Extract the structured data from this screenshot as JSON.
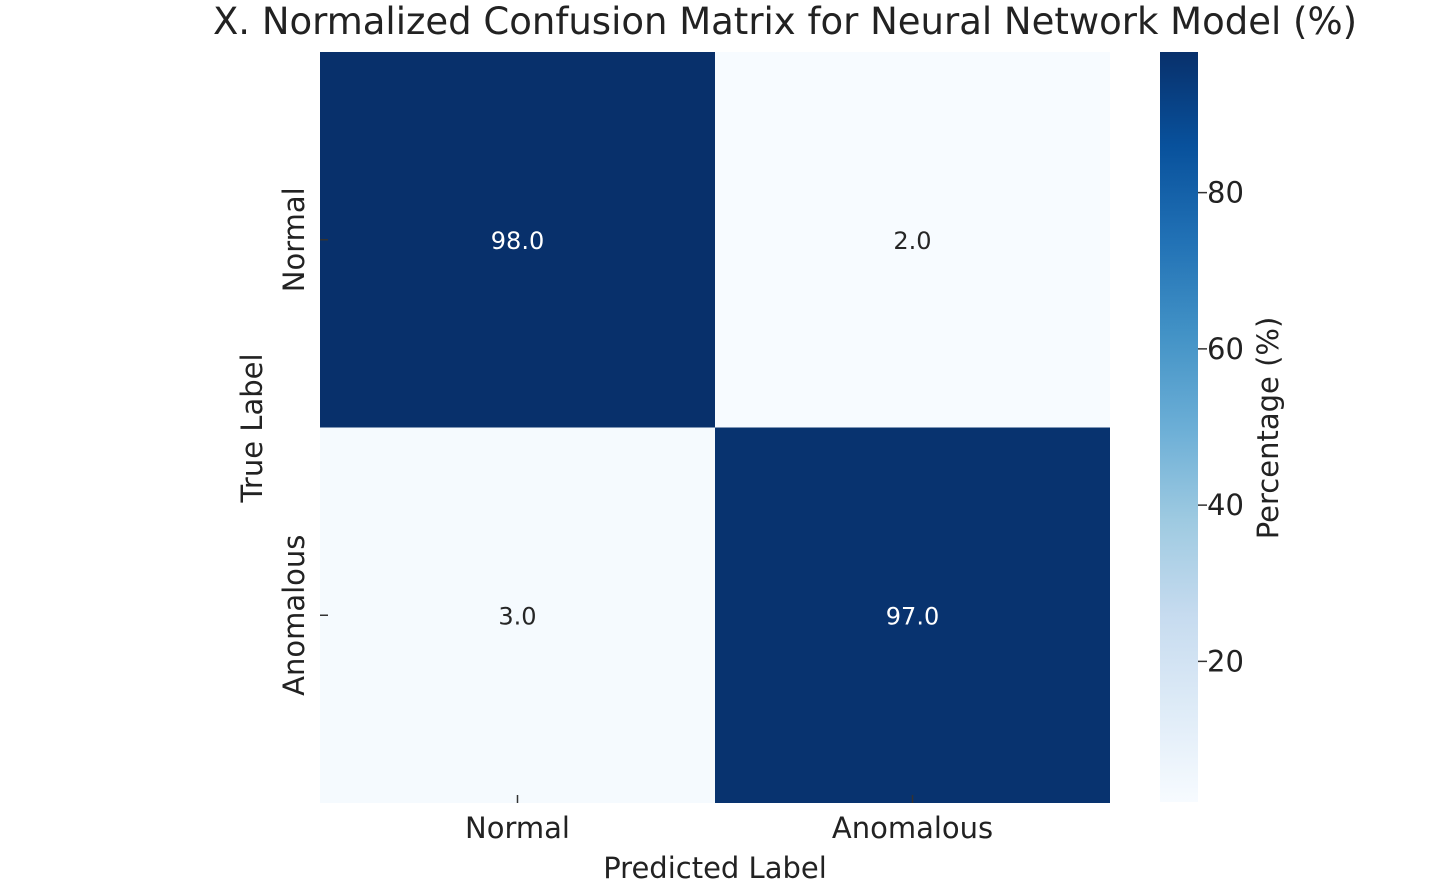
{
  "chart_data": {
    "type": "heatmap",
    "title": "X. Normalized Confusion Matrix for Neural Network Model (%)",
    "xlabel": "Predicted Label",
    "ylabel": "True Label",
    "x_categories": [
      "Normal",
      "Anomalous"
    ],
    "y_categories": [
      "Normal",
      "Anomalous"
    ],
    "values": [
      [
        98.0,
        2.0
      ],
      [
        3.0,
        97.0
      ]
    ],
    "cell_labels": [
      [
        "98.0",
        "2.0"
      ],
      [
        "3.0",
        "97.0"
      ]
    ],
    "colormap": "Blues",
    "colormap_stops": [
      "#f7fbff",
      "#deebf7",
      "#c6dbef",
      "#9ecae1",
      "#6baed6",
      "#4292c6",
      "#2171b5",
      "#08519c",
      "#08306b"
    ],
    "colorbar": {
      "label": "Percentage (%)",
      "range": [
        2.0,
        98.0
      ],
      "ticks": [
        20,
        40,
        60,
        80
      ],
      "tick_labels": [
        "20",
        "40",
        "60",
        "80"
      ]
    },
    "grid": false,
    "legend": "colorbar-right"
  }
}
